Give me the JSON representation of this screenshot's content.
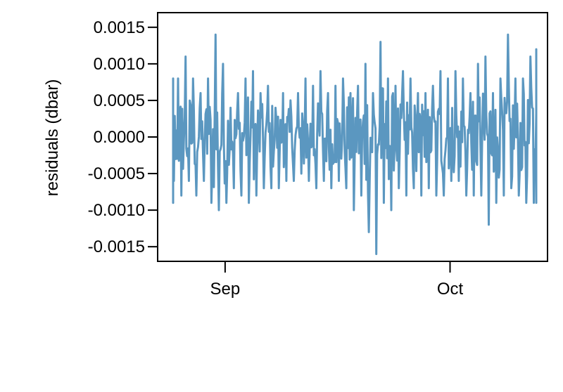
{
  "chart_data": {
    "type": "line",
    "title": "",
    "xlabel": "",
    "ylabel": "residuals (dbar)",
    "ylim": [
      -0.0017,
      0.0017
    ],
    "xlim": [
      "2018-08-23",
      "2018-10-14"
    ],
    "grid": false,
    "legend": "none",
    "y_ticks": [
      {
        "value": 0.0015,
        "label": "0.0015"
      },
      {
        "value": 0.001,
        "label": "0.0010"
      },
      {
        "value": 0.0005,
        "label": "0.0005"
      },
      {
        "value": 0.0,
        "label": "0.0000"
      },
      {
        "value": -0.0005,
        "label": "-0.0005"
      },
      {
        "value": -0.001,
        "label": "-0.0010"
      },
      {
        "value": -0.0015,
        "label": "-0.0015"
      }
    ],
    "x_ticks": [
      {
        "value": "2018-09-01",
        "label": "Sep"
      },
      {
        "value": "2018-10-01",
        "label": "Oct"
      }
    ],
    "series": [
      {
        "color": "#5b97c0",
        "x": [
          "2018-08-24",
          "2018-08-25",
          "2018-08-26",
          "2018-08-27",
          "2018-08-28",
          "2018-08-29",
          "2018-08-30",
          "2018-08-31",
          "2018-09-01",
          "2018-09-02",
          "2018-09-03",
          "2018-09-04",
          "2018-09-05",
          "2018-09-06",
          "2018-09-07",
          "2018-09-08",
          "2018-09-09",
          "2018-09-10",
          "2018-09-11",
          "2018-09-12",
          "2018-09-13",
          "2018-09-14",
          "2018-09-15",
          "2018-09-16",
          "2018-09-17",
          "2018-09-18",
          "2018-09-19",
          "2018-09-20",
          "2018-09-21",
          "2018-09-22",
          "2018-09-23",
          "2018-09-24",
          "2018-09-25",
          "2018-09-26",
          "2018-09-27",
          "2018-09-28",
          "2018-09-29",
          "2018-09-30",
          "2018-10-01",
          "2018-10-02",
          "2018-10-03",
          "2018-10-04",
          "2018-10-05",
          "2018-10-06",
          "2018-10-07",
          "2018-10-08",
          "2018-10-09",
          "2018-10-10",
          "2018-10-11",
          "2018-10-12",
          "2018-10-13"
        ],
        "y_max": [
          0.0005,
          0.0008,
          0.0008,
          0.0011,
          0.0008,
          0.0006,
          0.0008,
          0.0014,
          0.001,
          0.0004,
          0.0006,
          0.0008,
          0.0009,
          0.0006,
          0.0007,
          0.0004,
          0.0006,
          0.0005,
          0.0006,
          0.0008,
          0.0007,
          0.0009,
          0.0006,
          0.0007,
          0.0008,
          0.0006,
          0.0007,
          0.001,
          0.0006,
          0.0013,
          0.0008,
          0.0007,
          0.0009,
          0.0008,
          0.0006,
          0.0006,
          0.0007,
          0.0009,
          0.0008,
          0.0009,
          0.0008,
          0.0006,
          0.001,
          0.0011,
          0.0006,
          0.0008,
          0.0014,
          0.0008,
          0.0008,
          0.0011,
          0.0012
        ],
        "y_min": [
          -0.0009,
          -0.0006,
          -0.0008,
          -0.0006,
          -0.0008,
          -0.0006,
          -0.0009,
          -0.001,
          -0.0009,
          -0.0007,
          -0.0008,
          -0.0009,
          -0.0008,
          -0.0007,
          -0.0007,
          -0.0007,
          -0.0006,
          -0.0006,
          -0.0005,
          -0.0006,
          -0.0007,
          -0.0006,
          -0.0007,
          -0.0006,
          -0.0007,
          -0.001,
          -0.0008,
          -0.0013,
          -0.0016,
          -0.0009,
          -0.001,
          -0.0007,
          -0.0008,
          -0.0007,
          -0.0008,
          -0.0007,
          -0.0008,
          -0.0008,
          -0.0006,
          -0.0006,
          -0.0008,
          -0.0008,
          -0.0008,
          -0.0012,
          -0.0009,
          -0.0008,
          -0.0007,
          -0.0008,
          -0.0009,
          -0.0009,
          -0.0009
        ]
      }
    ]
  }
}
